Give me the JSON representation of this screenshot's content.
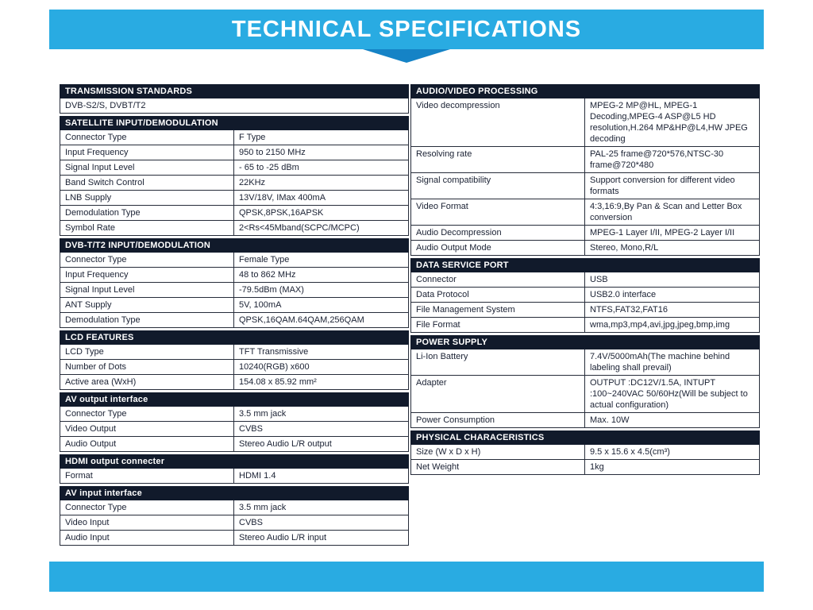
{
  "title": "TECHNICAL SPECIFICATIONS",
  "colors": {
    "banner": "#29abe2",
    "chevron": "#1583c6",
    "section_header_bg": "#111a2b",
    "border": "#262c3a",
    "text": "#1a2133"
  },
  "columns": {
    "left": [
      {
        "header": "TRANSMISSION STANDARDS",
        "rows": [
          {
            "label": "DVB-S2/S, DVBT/T2",
            "value": null
          }
        ]
      },
      {
        "header": "SATELLITE INPUT/DEMODULATION",
        "rows": [
          {
            "label": "Connector Type",
            "value": "F Type"
          },
          {
            "label": "Input Frequency",
            "value": "950 to 2150 MHz"
          },
          {
            "label": "Signal Input Level",
            "value": "- 65 to -25 dBm"
          },
          {
            "label": "Band Switch Control",
            "value": "22KHz"
          },
          {
            "label": "LNB Supply",
            "value": "13V/18V, IMax 400mA"
          },
          {
            "label": "Demodulation Type",
            "value": "QPSK,8PSK,16APSK"
          },
          {
            "label": "Symbol Rate",
            "value": "2<Rs<45Mband(SCPC/MCPC)"
          }
        ]
      },
      {
        "header": "DVB-T/T2 INPUT/DEMODULATION",
        "rows": [
          {
            "label": "Connector Type",
            "value": "Female Type"
          },
          {
            "label": "Input Frequency",
            "value": "48 to 862 MHz"
          },
          {
            "label": "Signal Input Level",
            "value": "-79.5dBm (MAX)"
          },
          {
            "label": "ANT Supply",
            "value": "5V, 100mA"
          },
          {
            "label": "Demodulation Type",
            "value": "QPSK,16QAM.64QAM,256QAM"
          }
        ]
      },
      {
        "header": "LCD FEATURES",
        "rows": [
          {
            "label": "LCD Type",
            "value": "TFT Transmissive"
          },
          {
            "label": "Number of Dots",
            "value": "10240(RGB) x600"
          },
          {
            "label": "Active area (WxH)",
            "value": "154.08 x 85.92 mm²"
          }
        ]
      },
      {
        "header": "AV output interface",
        "rows": [
          {
            "label": "Connector Type",
            "value": "3.5 mm jack"
          },
          {
            "label": "Video Output",
            "value": "CVBS"
          },
          {
            "label": "Audio Output",
            "value": "Stereo Audio L/R output"
          }
        ]
      },
      {
        "header": "HDMI output connecter",
        "rows": [
          {
            "label": "Format",
            "value": "HDMI 1.4"
          }
        ]
      },
      {
        "header": "AV input interface",
        "rows": [
          {
            "label": "Connector Type",
            "value": "3.5 mm jack"
          },
          {
            "label": "Video Input",
            "value": "CVBS"
          },
          {
            "label": "Audio Input",
            "value": "Stereo Audio L/R input"
          }
        ]
      }
    ],
    "right": [
      {
        "header": "AUDIO/VIDEO PROCESSING",
        "rows": [
          {
            "label": "Video decompression",
            "value": "MPEG-2 MP@HL, MPEG-1 Decoding,MPEG-4 ASP@L5 HD resolution,H.264 MP&HP@L4,HW JPEG decoding"
          },
          {
            "label": "Resolving rate",
            "value": "PAL-25 frame@720*576,NTSC-30 frame@720*480"
          },
          {
            "label": "Signal compatibility",
            "value": "Support conversion for different video formats"
          },
          {
            "label": "Video Format",
            "value": "4:3,16:9,By Pan & Scan and Letter Box conversion"
          },
          {
            "label": "Audio Decompression",
            "value": "MPEG-1 Layer I/II, MPEG-2 Layer I/II"
          },
          {
            "label": "Audio Output Mode",
            "value": "Stereo, Mono,R/L"
          }
        ]
      },
      {
        "header": "DATA SERVICE PORT",
        "rows": [
          {
            "label": "Connector",
            "value": "USB"
          },
          {
            "label": "Data Protocol",
            "value": "USB2.0 interface"
          },
          {
            "label": "File Management System",
            "value": "NTFS,FAT32,FAT16"
          },
          {
            "label": "File Format",
            "value": "wma,mp3,mp4,avi,jpg,jpeg,bmp,img"
          }
        ]
      },
      {
        "header": "POWER SUPPLY",
        "rows": [
          {
            "label": "Li-Ion Battery",
            "value": "7.4V/5000mAh(The machine behind labeling shall prevail)"
          },
          {
            "label": "Adapter",
            "value": "OUTPUT :DC12V/1.5A, INTUPT :100~240VAC 50/60Hz(Will be subject to actual configuration)"
          },
          {
            "label": "Power Consumption",
            "value": "Max. 10W"
          }
        ]
      },
      {
        "header": "PHYSICAL CHARACERISTICS",
        "rows": [
          {
            "label": "Size (W x D x H)",
            "value": "9.5 x 15.6 x 4.5(cm³)"
          },
          {
            "label": "Net Weight",
            "value": "1kg"
          }
        ]
      }
    ]
  }
}
